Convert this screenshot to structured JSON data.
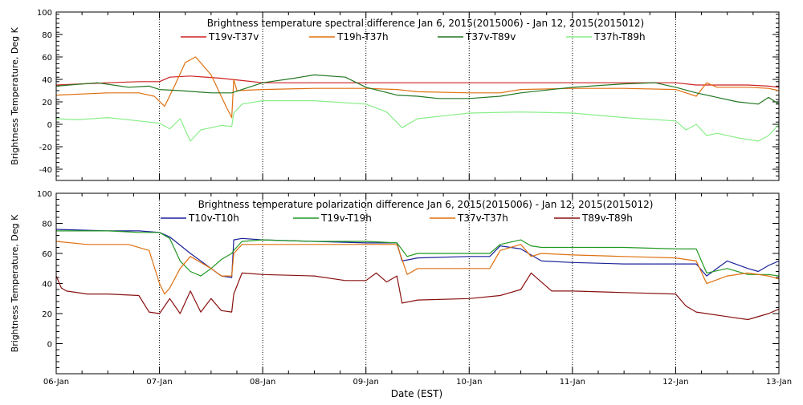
{
  "xaxis": {
    "label": "Date (EST)",
    "ticks": [
      "06-Jan",
      "07-Jan",
      "08-Jan",
      "09-Jan",
      "10-Jan",
      "11-Jan",
      "12-Jan",
      "13-Jan"
    ],
    "range_days": [
      0,
      7
    ]
  },
  "chart_data": [
    {
      "type": "line",
      "title": "Brightness temperature spectral difference     Jan  6, 2015(2015006) - Jan 12, 2015(2015012)",
      "ylabel": "Brightness Temperature, Deg K",
      "ylim": [
        -50,
        100
      ],
      "yticks": [
        -40,
        -20,
        0,
        20,
        40,
        60,
        80,
        100
      ],
      "x_unit": "days since 06-Jan 00:00",
      "series": [
        {
          "name": "T19v-T37v",
          "color": "#cc2222",
          "x": [
            0,
            0.5,
            0.8,
            1.0,
            1.1,
            1.3,
            1.6,
            1.8,
            2.0,
            3.0,
            3.3,
            3.5,
            4.0,
            5.0,
            6.0,
            6.2,
            6.4,
            6.7,
            6.9,
            7.0
          ],
          "y": [
            35,
            37,
            38,
            38,
            42,
            43,
            41,
            39,
            37,
            37,
            37,
            37,
            37,
            37,
            37,
            35,
            35,
            35,
            34,
            33
          ]
        },
        {
          "name": "T19h-T37h",
          "color": "#e07010",
          "x": [
            0,
            0.5,
            0.8,
            0.95,
            1.05,
            1.15,
            1.25,
            1.35,
            1.5,
            1.65,
            1.7,
            1.72,
            1.75,
            2.0,
            2.5,
            3.0,
            3.3,
            3.5,
            4.0,
            4.3,
            4.5,
            5.0,
            5.5,
            6.0,
            6.1,
            6.2,
            6.3,
            6.4,
            6.5,
            6.7,
            6.9,
            7.0
          ],
          "y": [
            26,
            28,
            28,
            25,
            16,
            35,
            55,
            60,
            44,
            15,
            6,
            40,
            30,
            31,
            32,
            32,
            31,
            29,
            28,
            28,
            31,
            32,
            32,
            31,
            28,
            25,
            37,
            33,
            33,
            33,
            32,
            30
          ]
        },
        {
          "name": "T37v-T89v",
          "color": "#227722",
          "x": [
            0,
            0.4,
            0.7,
            0.9,
            1.0,
            1.2,
            1.5,
            1.7,
            2.0,
            2.3,
            2.5,
            2.8,
            3.0,
            3.3,
            3.5,
            3.7,
            4.0,
            4.3,
            4.5,
            5.0,
            5.5,
            5.8,
            6.0,
            6.2,
            6.4,
            6.6,
            6.8,
            6.9,
            7.0
          ],
          "y": [
            34,
            37,
            33,
            34,
            31,
            30,
            28,
            28,
            37,
            41,
            44,
            42,
            33,
            26,
            25,
            23,
            23,
            25,
            28,
            33,
            36,
            37,
            33,
            28,
            24,
            20,
            18,
            24,
            18
          ]
        },
        {
          "name": "T37h-T89h",
          "color": "#88ee88",
          "x": [
            0,
            0.2,
            0.5,
            0.8,
            1.0,
            1.1,
            1.2,
            1.3,
            1.4,
            1.6,
            1.7,
            1.72,
            1.8,
            2.0,
            2.5,
            3.0,
            3.2,
            3.35,
            3.5,
            3.8,
            4.0,
            4.5,
            5.0,
            5.5,
            6.0,
            6.1,
            6.2,
            6.3,
            6.4,
            6.6,
            6.8,
            6.9,
            7.0
          ],
          "y": [
            5,
            4,
            6,
            3,
            1,
            -4,
            5,
            -15,
            -5,
            -1,
            -2,
            10,
            18,
            21,
            21,
            18,
            11,
            -3,
            5,
            8,
            10,
            11,
            10,
            6,
            3,
            -5,
            0,
            -10,
            -8,
            -12,
            -15,
            -10,
            0
          ]
        }
      ]
    },
    {
      "type": "line",
      "title": "Brightness temperature polarization difference     Jan  6, 2015(2015006) - Jan 12, 2015(2015012)",
      "ylabel": "Brightness Temperature, Deg K",
      "ylim": [
        -20,
        100
      ],
      "yticks": [
        0,
        20,
        40,
        60,
        80,
        100
      ],
      "x_unit": "days since 06-Jan 00:00",
      "series": [
        {
          "name": "T10v-T10h",
          "color": "#1a2299",
          "x": [
            0,
            0.5,
            0.8,
            1.0,
            1.1,
            1.3,
            1.5,
            1.6,
            1.7,
            1.72,
            1.8,
            2.0,
            2.5,
            3.0,
            3.3,
            3.35,
            3.5,
            4.0,
            4.2,
            4.3,
            4.5,
            4.7,
            5.0,
            5.5,
            6.0,
            6.2,
            6.3,
            6.5,
            6.7,
            6.8,
            6.9,
            7.0
          ],
          "y": [
            76,
            75,
            75,
            74,
            71,
            60,
            50,
            45,
            44,
            69,
            70,
            69,
            68,
            67,
            67,
            55,
            57,
            58,
            58,
            65,
            63,
            55,
            54,
            53,
            53,
            53,
            45,
            55,
            50,
            48,
            52,
            55
          ]
        },
        {
          "name": "T19v-T19h",
          "color": "#229922",
          "x": [
            0,
            0.5,
            0.8,
            1.0,
            1.1,
            1.2,
            1.3,
            1.4,
            1.5,
            1.6,
            1.7,
            1.72,
            1.8,
            2.0,
            2.5,
            3.0,
            3.3,
            3.4,
            3.5,
            4.0,
            4.2,
            4.3,
            4.5,
            4.6,
            4.7,
            5.0,
            5.5,
            6.0,
            6.2,
            6.3,
            6.5,
            6.7,
            6.9,
            7.0
          ],
          "y": [
            75,
            75,
            74,
            74,
            70,
            55,
            48,
            45,
            50,
            56,
            60,
            62,
            68,
            69,
            68,
            68,
            67,
            58,
            60,
            60,
            60,
            66,
            69,
            65,
            64,
            64,
            64,
            63,
            63,
            47,
            50,
            46,
            46,
            45
          ]
        },
        {
          "name": "T37v-T37h",
          "color": "#e07010",
          "x": [
            0,
            0.3,
            0.7,
            0.9,
            1.0,
            1.05,
            1.1,
            1.2,
            1.3,
            1.5,
            1.6,
            1.7,
            1.72,
            1.8,
            2.0,
            2.5,
            3.0,
            3.3,
            3.4,
            3.5,
            4.0,
            4.2,
            4.3,
            4.5,
            4.6,
            4.7,
            5.0,
            5.5,
            6.0,
            6.2,
            6.3,
            6.5,
            6.7,
            6.9,
            7.0
          ],
          "y": [
            68,
            66,
            66,
            62,
            40,
            33,
            37,
            50,
            58,
            50,
            45,
            45,
            60,
            66,
            66,
            66,
            66,
            66,
            46,
            50,
            50,
            50,
            62,
            66,
            58,
            60,
            59,
            58,
            57,
            55,
            40,
            45,
            47,
            45,
            43
          ]
        },
        {
          "name": "T89v-T89h",
          "color": "#881111",
          "x": [
            0,
            0.05,
            0.1,
            0.3,
            0.5,
            0.8,
            0.9,
            1.0,
            1.1,
            1.2,
            1.3,
            1.4,
            1.5,
            1.6,
            1.7,
            1.72,
            1.8,
            2.0,
            2.5,
            2.8,
            3.0,
            3.1,
            3.2,
            3.3,
            3.35,
            3.5,
            4.0,
            4.3,
            4.5,
            4.6,
            4.8,
            5.0,
            5.5,
            6.0,
            6.1,
            6.2,
            6.5,
            6.7,
            6.9,
            7.0
          ],
          "y": [
            45,
            37,
            35,
            33,
            33,
            32,
            21,
            20,
            30,
            20,
            35,
            21,
            30,
            22,
            21,
            33,
            47,
            46,
            45,
            42,
            42,
            47,
            41,
            45,
            27,
            29,
            30,
            32,
            36,
            47,
            35,
            35,
            34,
            33,
            25,
            21,
            18,
            16,
            20,
            23
          ]
        }
      ]
    }
  ]
}
